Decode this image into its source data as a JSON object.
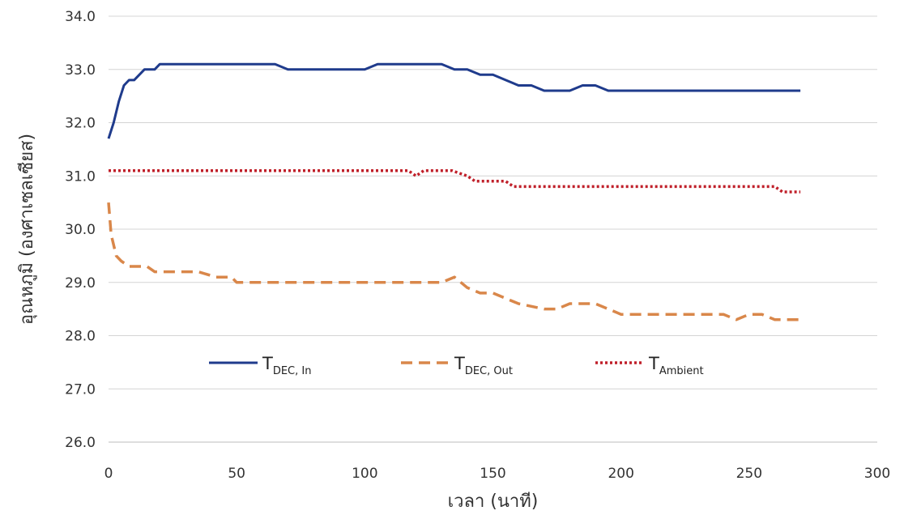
{
  "chart_data": {
    "type": "line",
    "title": "",
    "xlabel": "เวลา (นาที)",
    "ylabel": "อุณหภูมิ (องศาเซลเซียส)",
    "xlim": [
      0,
      300
    ],
    "ylim": [
      26.0,
      34.0
    ],
    "xticks": [
      "0",
      "50",
      "100",
      "150",
      "200",
      "250",
      "300"
    ],
    "yticks": [
      "26.0",
      "27.0",
      "28.0",
      "29.0",
      "30.0",
      "31.0",
      "32.0",
      "33.0",
      "34.0"
    ],
    "grid": "horizontal",
    "legend_position": "inside-bottom",
    "series": [
      {
        "name": "T",
        "name_sub": "DEC, In",
        "color": "#1f3b8c",
        "style": "solid",
        "points": [
          [
            0,
            31.7
          ],
          [
            2,
            32.0
          ],
          [
            4,
            32.4
          ],
          [
            6,
            32.7
          ],
          [
            8,
            32.8
          ],
          [
            10,
            32.8
          ],
          [
            12,
            32.9
          ],
          [
            14,
            33.0
          ],
          [
            18,
            33.0
          ],
          [
            20,
            33.1
          ],
          [
            60,
            33.1
          ],
          [
            65,
            33.1
          ],
          [
            70,
            33.0
          ],
          [
            100,
            33.0
          ],
          [
            105,
            33.1
          ],
          [
            130,
            33.1
          ],
          [
            135,
            33.0
          ],
          [
            140,
            33.0
          ],
          [
            145,
            32.9
          ],
          [
            150,
            32.9
          ],
          [
            155,
            32.8
          ],
          [
            160,
            32.7
          ],
          [
            165,
            32.7
          ],
          [
            170,
            32.6
          ],
          [
            180,
            32.6
          ],
          [
            185,
            32.7
          ],
          [
            190,
            32.7
          ],
          [
            195,
            32.6
          ],
          [
            200,
            32.6
          ],
          [
            270,
            32.6
          ]
        ]
      },
      {
        "name": "T",
        "name_sub": "DEC, Out",
        "color": "#d9874a",
        "style": "dashed",
        "points": [
          [
            0,
            30.5
          ],
          [
            1,
            29.9
          ],
          [
            3,
            29.5
          ],
          [
            5,
            29.4
          ],
          [
            8,
            29.3
          ],
          [
            15,
            29.3
          ],
          [
            18,
            29.2
          ],
          [
            20,
            29.2
          ],
          [
            35,
            29.2
          ],
          [
            42,
            29.1
          ],
          [
            48,
            29.1
          ],
          [
            50,
            29.0
          ],
          [
            130,
            29.0
          ],
          [
            135,
            29.1
          ],
          [
            140,
            28.9
          ],
          [
            145,
            28.8
          ],
          [
            150,
            28.8
          ],
          [
            155,
            28.7
          ],
          [
            160,
            28.6
          ],
          [
            170,
            28.5
          ],
          [
            175,
            28.5
          ],
          [
            180,
            28.6
          ],
          [
            185,
            28.6
          ],
          [
            190,
            28.6
          ],
          [
            195,
            28.5
          ],
          [
            200,
            28.4
          ],
          [
            240,
            28.4
          ],
          [
            245,
            28.3
          ],
          [
            250,
            28.4
          ],
          [
            255,
            28.4
          ],
          [
            260,
            28.3
          ],
          [
            270,
            28.3
          ]
        ]
      },
      {
        "name": "T",
        "name_sub": "Ambient",
        "color": "#c0202a",
        "style": "dotted",
        "points": [
          [
            0,
            31.1
          ],
          [
            117,
            31.1
          ],
          [
            120,
            31.0
          ],
          [
            123,
            31.1
          ],
          [
            134,
            31.1
          ],
          [
            140,
            31.0
          ],
          [
            143,
            30.9
          ],
          [
            155,
            30.9
          ],
          [
            158,
            30.8
          ],
          [
            260,
            30.8
          ],
          [
            263,
            30.7
          ],
          [
            270,
            30.7
          ]
        ]
      }
    ]
  }
}
